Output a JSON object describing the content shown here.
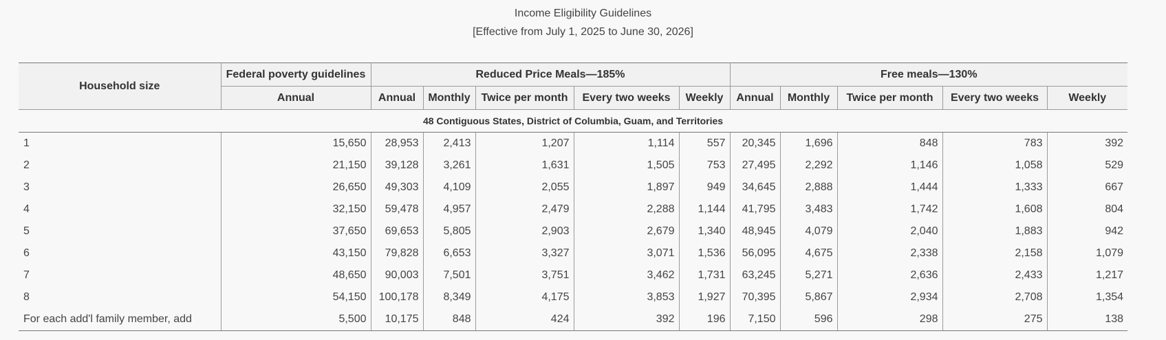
{
  "title": "Income Eligibility Guidelines",
  "subtitle": "[Effective from July 1, 2025 to June 30, 2026]",
  "headers": {
    "household_size": "Household size",
    "federal": "Federal poverty guidelines",
    "reduced": "Reduced Price Meals—185%",
    "free": "Free meals—130%",
    "annual": "Annual",
    "monthly": "Monthly",
    "twice_per_month": "Twice per month",
    "every_two_weeks": "Every two weeks",
    "weekly": "Weekly"
  },
  "section_label": "48 Contiguous States, District of Columbia, Guam, and Territories",
  "rows": [
    [
      "1",
      "15,650",
      "28,953",
      "2,413",
      "1,207",
      "1,114",
      "557",
      "20,345",
      "1,696",
      "848",
      "783",
      "392"
    ],
    [
      "2",
      "21,150",
      "39,128",
      "3,261",
      "1,631",
      "1,505",
      "753",
      "27,495",
      "2,292",
      "1,146",
      "1,058",
      "529"
    ],
    [
      "3",
      "26,650",
      "49,303",
      "4,109",
      "2,055",
      "1,897",
      "949",
      "34,645",
      "2,888",
      "1,444",
      "1,333",
      "667"
    ],
    [
      "4",
      "32,150",
      "59,478",
      "4,957",
      "2,479",
      "2,288",
      "1,144",
      "41,795",
      "3,483",
      "1,742",
      "1,608",
      "804"
    ],
    [
      "5",
      "37,650",
      "69,653",
      "5,805",
      "2,903",
      "2,679",
      "1,340",
      "48,945",
      "4,079",
      "2,040",
      "1,883",
      "942"
    ],
    [
      "6",
      "43,150",
      "79,828",
      "6,653",
      "3,327",
      "3,071",
      "1,536",
      "56,095",
      "4,675",
      "2,338",
      "2,158",
      "1,079"
    ],
    [
      "7",
      "48,650",
      "90,003",
      "7,501",
      "3,751",
      "3,462",
      "1,731",
      "63,245",
      "5,271",
      "2,636",
      "2,433",
      "1,217"
    ],
    [
      "8",
      "54,150",
      "100,178",
      "8,349",
      "4,175",
      "3,853",
      "1,927",
      "70,395",
      "5,867",
      "2,934",
      "2,708",
      "1,354"
    ],
    [
      "For each add'l family member, add",
      "5,500",
      "10,175",
      "848",
      "424",
      "392",
      "196",
      "7,150",
      "596",
      "298",
      "275",
      "138"
    ]
  ]
}
